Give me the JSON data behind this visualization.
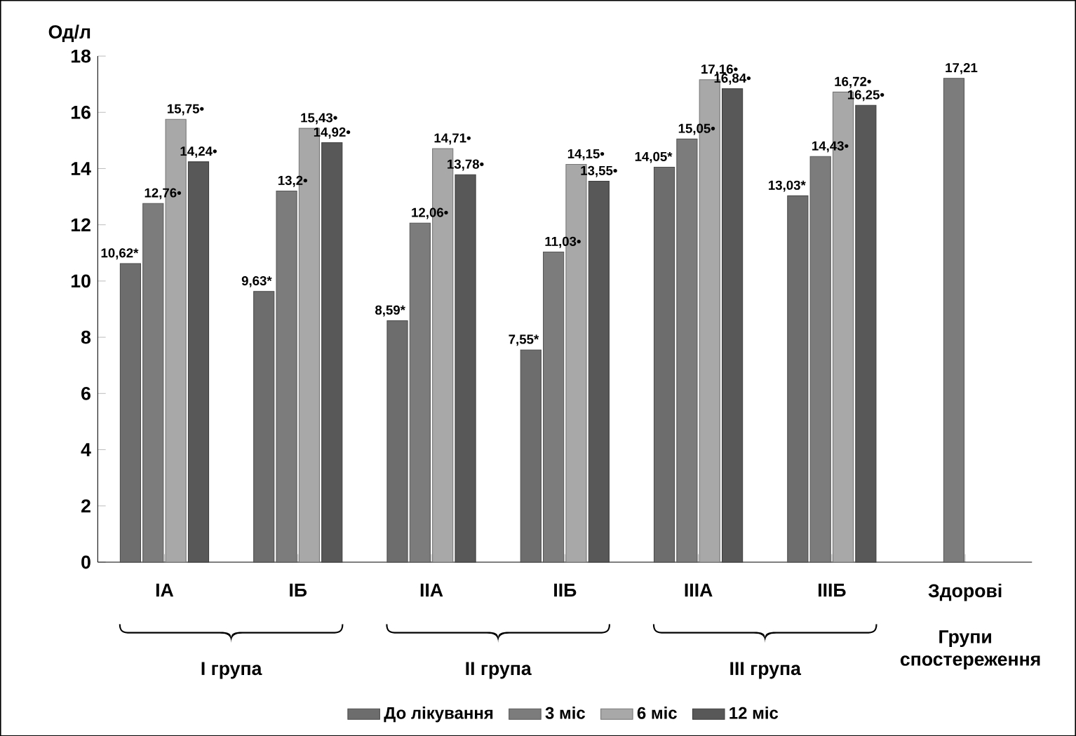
{
  "chart_data": {
    "type": "bar",
    "ylabel": "Од/л",
    "categories": [
      "IA",
      "IБ",
      "IIA",
      "IIБ",
      "IIIA",
      "IIIБ",
      "Здорові"
    ],
    "series": [
      {
        "name": "До лікування",
        "color": "#6d6d6d",
        "values": [
          10.62,
          9.63,
          8.59,
          7.55,
          14.05,
          13.03,
          null
        ],
        "value_labels": [
          "10,62*",
          "9,63*",
          "8,59*",
          "7,55*",
          "14,05*",
          "13,03*",
          null
        ]
      },
      {
        "name": "3 міс",
        "color": "#7c7c7c",
        "values": [
          12.76,
          13.2,
          12.06,
          11.03,
          15.05,
          14.43,
          17.21
        ],
        "value_labels": [
          "12,76•",
          "13,2•",
          "12,06•",
          "11,03•",
          "15,05•",
          "14,43•",
          "17,21"
        ]
      },
      {
        "name": "6 міс",
        "color": "#a8a8a8",
        "values": [
          15.75,
          15.43,
          14.71,
          14.15,
          17.16,
          16.72,
          null
        ],
        "value_labels": [
          "15,75•",
          "15,43•",
          "14,71•",
          "14,15•",
          "17,16•",
          "16,72•",
          null
        ]
      },
      {
        "name": "12 міс",
        "color": "#585858",
        "values": [
          14.24,
          14.92,
          13.78,
          13.55,
          16.84,
          16.25,
          null
        ],
        "value_labels": [
          "14,24•",
          "14,92•",
          "13,78•",
          "13,55•",
          "16,84•",
          "16,25•",
          null
        ]
      }
    ],
    "ylim": [
      0,
      18
    ],
    "yticks": [
      0,
      2,
      4,
      6,
      8,
      10,
      12,
      14,
      16,
      18
    ],
    "legend": "bottom",
    "annotations": [
      "I група",
      "II група",
      "III група",
      "Групи спостереження"
    ]
  }
}
